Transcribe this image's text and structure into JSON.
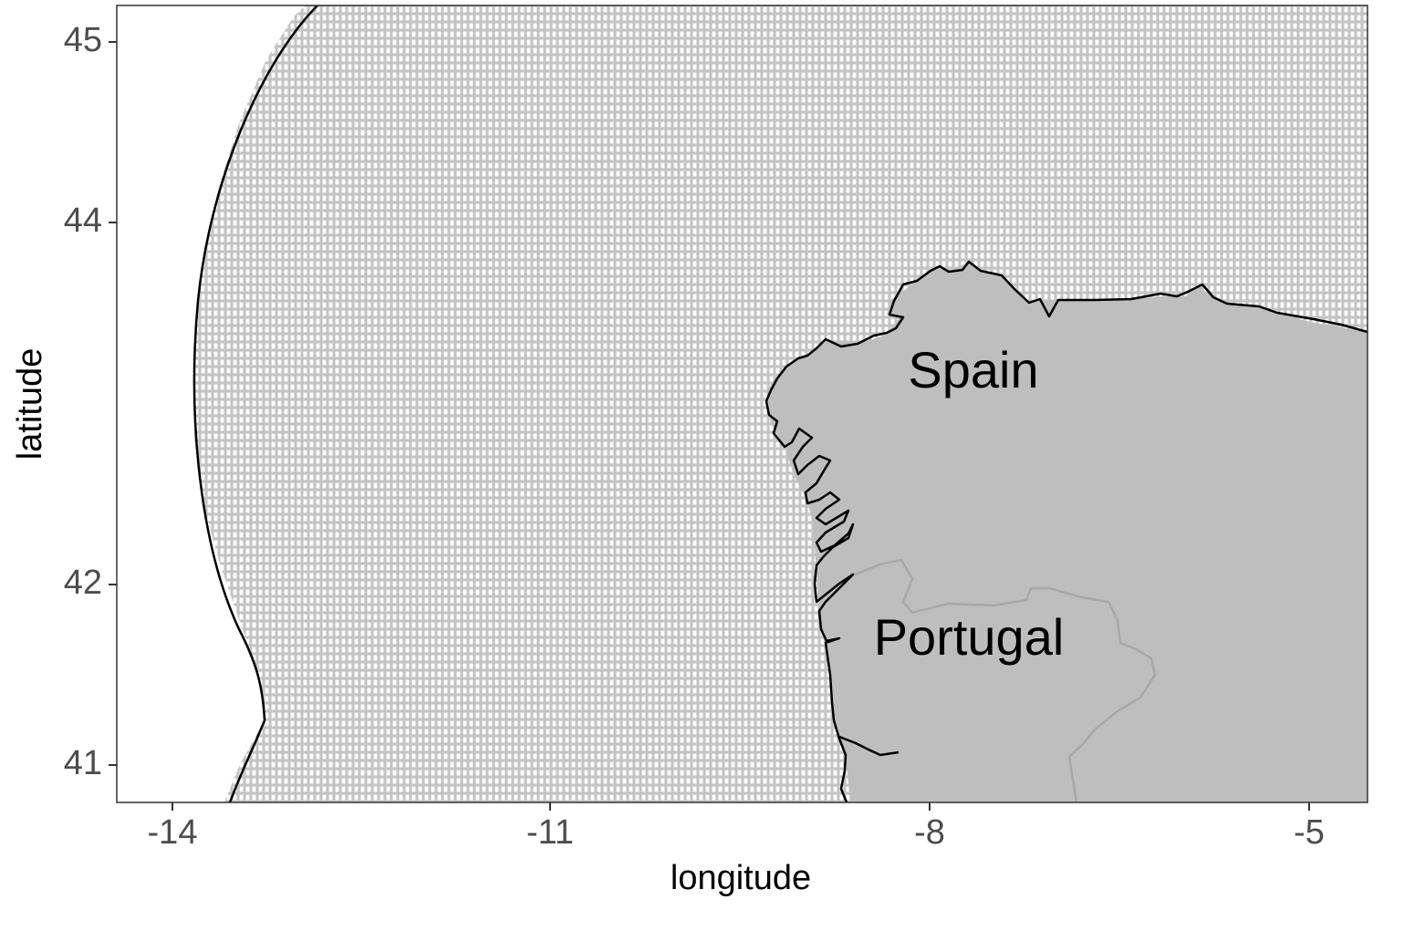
{
  "map": {
    "xlabel": "longitude",
    "ylabel": "latitude",
    "x_ticks": [
      "-14",
      "-11",
      "-8",
      "-5"
    ],
    "y_ticks": [
      "45",
      "44",
      "42",
      "41"
    ],
    "country_labels": [
      "Spain",
      "Portugal"
    ]
  },
  "colors": {
    "grid_cells": "#c4c4c4",
    "land": "#bebebe",
    "border": "#a8a8a8",
    "outline": "#000000",
    "panel_border": "#333333"
  },
  "chart_data": {
    "type": "map",
    "xlabel": "longitude",
    "ylabel": "latitude",
    "xlim": [
      -14.45,
      -4.55
    ],
    "ylim": [
      40.8,
      45.2
    ],
    "x_ticks": [
      -14,
      -11,
      -8,
      -5
    ],
    "y_ticks": [
      45,
      44,
      42,
      41
    ],
    "layers": [
      "grid-cells",
      "land",
      "coastline",
      "border",
      "outer-boundary"
    ],
    "labels": [
      "Spain",
      "Portugal"
    ]
  }
}
